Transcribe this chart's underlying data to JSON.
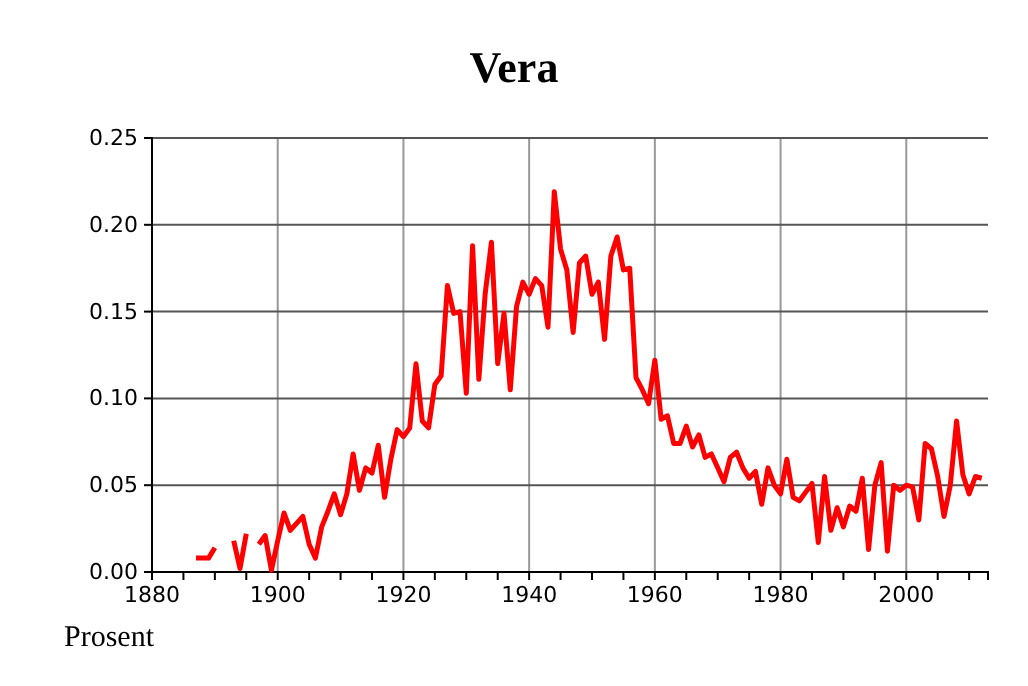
{
  "chart_data": {
    "type": "line",
    "title": "Vera",
    "ylabel": "Prosent",
    "x": [
      1887,
      1888,
      1889,
      1890,
      1891,
      1892,
      1893,
      1894,
      1895,
      1896,
      1897,
      1898,
      1899,
      1900,
      1901,
      1902,
      1903,
      1904,
      1905,
      1906,
      1907,
      1908,
      1909,
      1910,
      1911,
      1912,
      1913,
      1914,
      1915,
      1916,
      1917,
      1918,
      1919,
      1920,
      1921,
      1922,
      1923,
      1924,
      1925,
      1926,
      1927,
      1928,
      1929,
      1930,
      1931,
      1932,
      1933,
      1934,
      1935,
      1936,
      1937,
      1938,
      1939,
      1940,
      1941,
      1942,
      1943,
      1944,
      1945,
      1946,
      1947,
      1948,
      1949,
      1950,
      1951,
      1952,
      1953,
      1954,
      1955,
      1956,
      1957,
      1958,
      1959,
      1960,
      1961,
      1962,
      1963,
      1964,
      1965,
      1966,
      1967,
      1968,
      1969,
      1970,
      1971,
      1972,
      1973,
      1974,
      1975,
      1976,
      1977,
      1978,
      1979,
      1980,
      1981,
      1982,
      1983,
      1984,
      1985,
      1986,
      1987,
      1988,
      1989,
      1990,
      1991,
      1992,
      1993,
      1994,
      1995,
      1996,
      1997,
      1998,
      1999,
      2000,
      2001,
      2002,
      2003,
      2004,
      2005,
      2006,
      2007,
      2008,
      2009,
      2010,
      2011,
      2012
    ],
    "series": [
      {
        "color": "#ff0000",
        "values": [
          0.008,
          0.008,
          0.008,
          0.014,
          null,
          null,
          0.018,
          0.002,
          0.022,
          null,
          0.016,
          0.021,
          0.001,
          0.018,
          0.034,
          0.024,
          0.028,
          0.032,
          0.016,
          0.008,
          0.026,
          0.035,
          0.045,
          0.033,
          0.045,
          0.068,
          0.047,
          0.06,
          0.057,
          0.073,
          0.043,
          0.065,
          0.082,
          0.078,
          0.083,
          0.12,
          0.087,
          0.083,
          0.108,
          0.113,
          0.165,
          0.149,
          0.15,
          0.103,
          0.188,
          0.111,
          0.16,
          0.19,
          0.12,
          0.149,
          0.105,
          0.153,
          0.167,
          0.16,
          0.169,
          0.165,
          0.141,
          0.219,
          0.186,
          0.174,
          0.138,
          0.178,
          0.182,
          0.16,
          0.167,
          0.134,
          0.182,
          0.193,
          0.174,
          0.175,
          0.112,
          0.105,
          0.097,
          0.122,
          0.088,
          0.09,
          0.074,
          0.074,
          0.084,
          0.072,
          0.079,
          0.066,
          0.068,
          0.06,
          0.052,
          0.066,
          0.069,
          0.06,
          0.054,
          0.058,
          0.039,
          0.06,
          0.05,
          0.045,
          0.065,
          0.043,
          0.041,
          0.046,
          0.051,
          0.017,
          0.055,
          0.024,
          0.037,
          0.026,
          0.038,
          0.035,
          0.054,
          0.013,
          0.05,
          0.063,
          0.012,
          0.05,
          0.047,
          0.05,
          0.049,
          0.03,
          0.074,
          0.071,
          0.055,
          0.032,
          0.05,
          0.087,
          0.056,
          0.045,
          0.055,
          0.054
        ]
      }
    ],
    "xlim": [
      1880,
      2013
    ],
    "xticks": [
      1880,
      {
        "value": 1885,
        "label": null
      },
      {
        "value": 1890,
        "label": null
      },
      {
        "value": 1895,
        "label": null
      },
      1900,
      {
        "value": 1905,
        "label": null
      },
      {
        "value": 1910,
        "label": null
      },
      {
        "value": 1915,
        "label": null
      },
      1920,
      {
        "value": 1925,
        "label": null
      },
      {
        "value": 1930,
        "label": null
      },
      {
        "value": 1935,
        "label": null
      },
      1940,
      {
        "value": 1945,
        "label": null
      },
      {
        "value": 1950,
        "label": null
      },
      {
        "value": 1955,
        "label": null
      },
      1960,
      {
        "value": 1965,
        "label": null
      },
      {
        "value": 1970,
        "label": null
      },
      {
        "value": 1975,
        "label": null
      },
      1980,
      {
        "value": 1985,
        "label": null
      },
      {
        "value": 1990,
        "label": null
      },
      {
        "value": 1995,
        "label": null
      },
      2000,
      {
        "value": 2005,
        "label": null
      },
      {
        "value": 2010,
        "label": null
      }
    ],
    "ylim": [
      0,
      0.25
    ],
    "yticks": [
      {
        "value": 0,
        "label": "0.00"
      },
      {
        "value": 0.05,
        "label": "0.05"
      },
      {
        "value": 0.1,
        "label": "0.10"
      },
      {
        "value": 0.15,
        "label": "0.15"
      },
      {
        "value": 0.2,
        "label": "0.20"
      },
      {
        "value": 0.25,
        "label": "0.25"
      }
    ],
    "grid": true,
    "marker": "none",
    "line_style": "solid"
  }
}
